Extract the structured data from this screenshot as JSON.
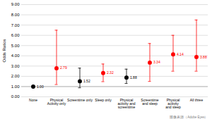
{
  "chart_data": {
    "type": "errorbar",
    "categories": [
      "None",
      "Physical\nActivity only",
      "Screentime only",
      "Sleep only",
      "Physical\nactivity and\nscreentime",
      "Screentime\nand sleep",
      "Physical\nactivity\nand sleep",
      "All three"
    ],
    "values": [
      1.0,
      2.79,
      1.52,
      2.32,
      1.88,
      3.34,
      4.14,
      3.88
    ],
    "value_labels": [
      "1.00",
      "2.79",
      "1.52",
      "2.32",
      "1.88",
      "3.34",
      "4.14",
      "3.88"
    ],
    "ci_low": [
      null,
      1.2,
      0.88,
      1.48,
      1.3,
      1.5,
      2.5,
      2.5
    ],
    "ci_high": [
      null,
      6.5,
      2.8,
      3.2,
      2.7,
      5.2,
      6.0,
      7.5
    ],
    "colors": [
      "black",
      "red",
      "black",
      "red",
      "black",
      "red",
      "red",
      "red"
    ],
    "ylabel": "Odds Ratios",
    "ylim": [
      0.0,
      9.0
    ],
    "yticks": [
      {
        "value": 0,
        "label": "0.00"
      },
      {
        "value": 1,
        "label": "1.00"
      },
      {
        "value": 2,
        "label": "2.00"
      },
      {
        "value": 3,
        "label": "3.00"
      },
      {
        "value": 4,
        "label": "4.00"
      },
      {
        "value": 5,
        "label": "5.00"
      },
      {
        "value": 6,
        "label": "6.00"
      },
      {
        "value": 7,
        "label": "7.00"
      },
      {
        "value": 8,
        "label": "8.00"
      },
      {
        "value": 9,
        "label": "9.00"
      }
    ],
    "hline": 1.0,
    "grid": true,
    "data_labels": true,
    "caption": "图像来源（Adobe Eyes）"
  }
}
